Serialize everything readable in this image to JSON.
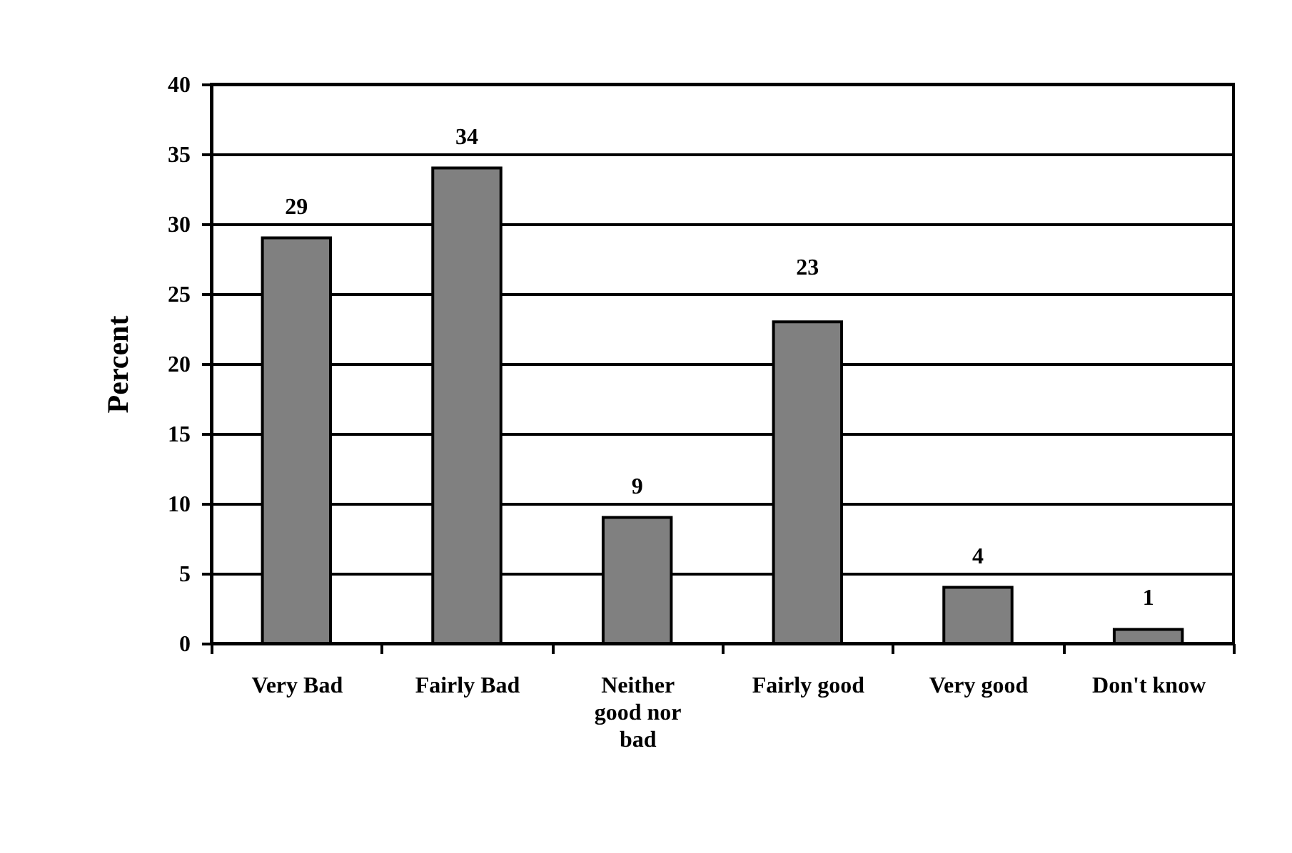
{
  "chart_data": {
    "type": "bar",
    "ylabel": "Percent",
    "categories": [
      "Very Bad",
      "Fairly Bad",
      "Neither good nor bad",
      "Fairly good",
      "Very good",
      "Don't know"
    ],
    "values": [
      29,
      34,
      9,
      23,
      4,
      1
    ],
    "color": "#808080",
    "ylim": [
      0,
      40
    ],
    "yticks": [
      0,
      5,
      10,
      15,
      20,
      25,
      30,
      35,
      40
    ],
    "grid": "y",
    "data_labels": true
  }
}
